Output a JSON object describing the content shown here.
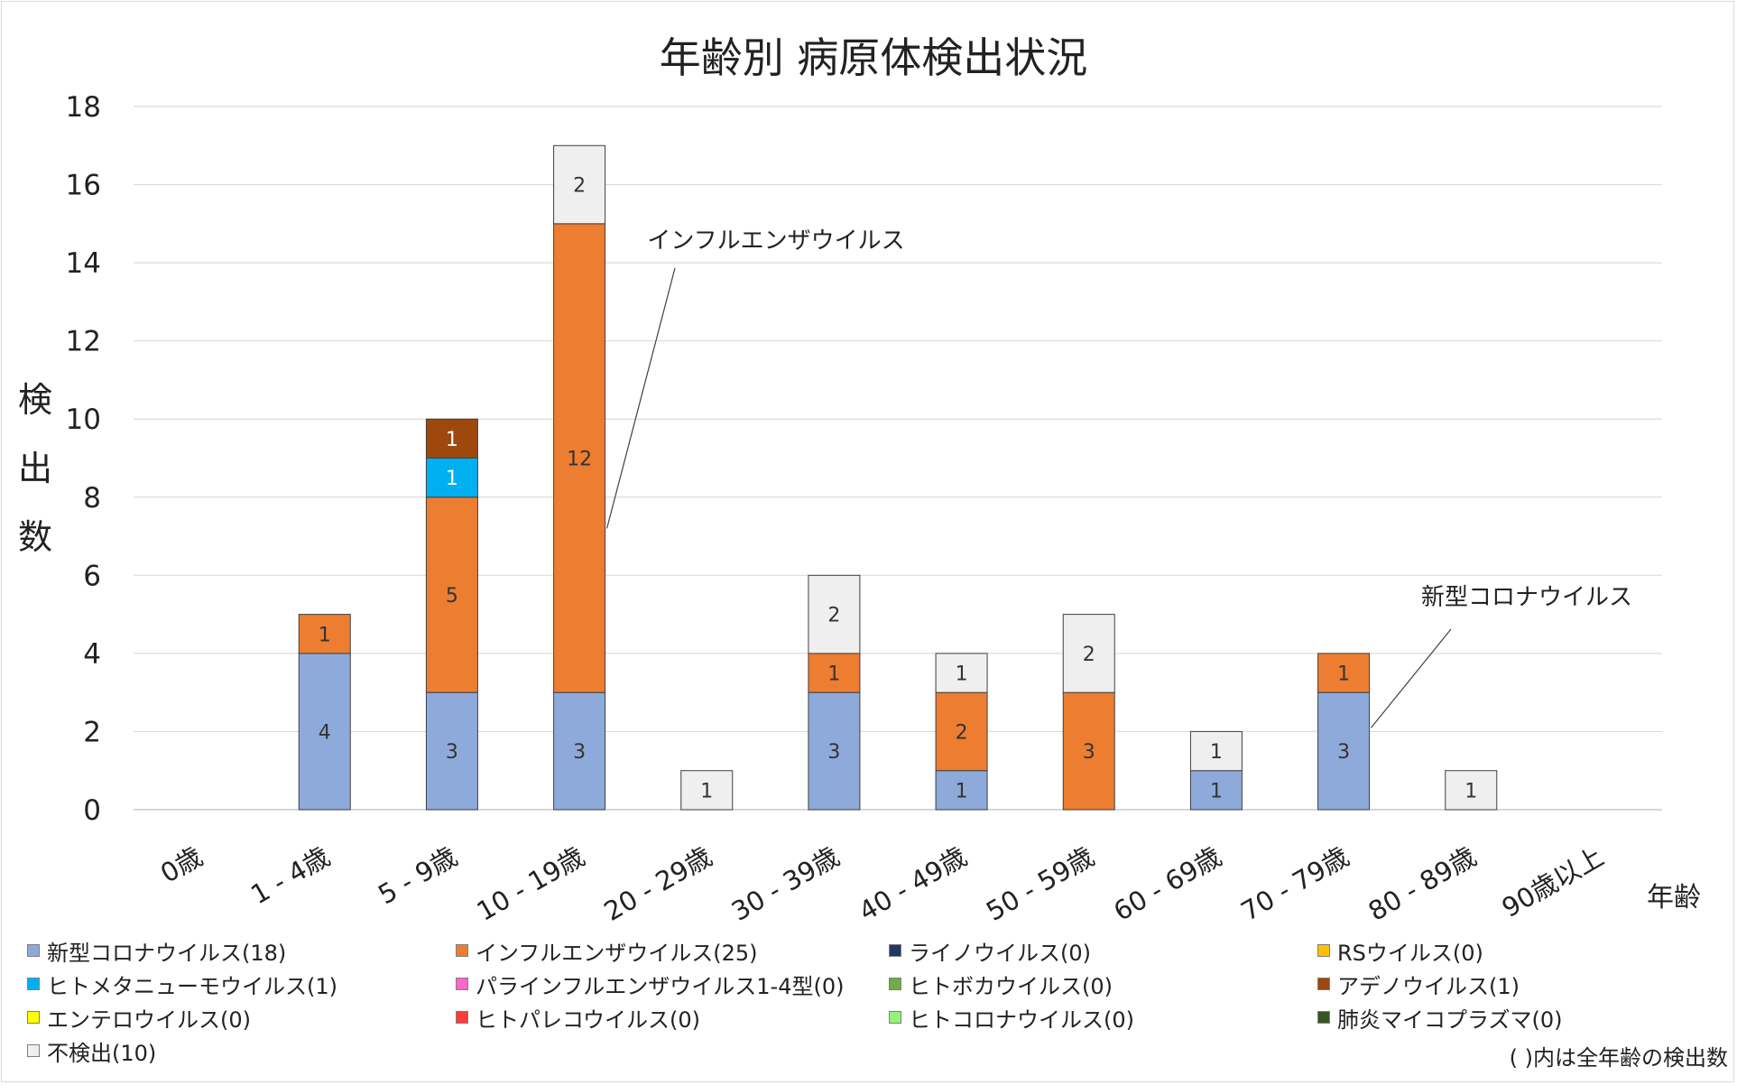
{
  "chart_data": {
    "type": "bar",
    "stacked": true,
    "title": "年齢別 病原体検出状況",
    "ylabel": "検出数",
    "xlabel": "年齢",
    "ylim": [
      0,
      18
    ],
    "yticks": [
      0,
      2,
      4,
      6,
      8,
      10,
      12,
      14,
      16,
      18
    ],
    "grid": true,
    "legend_position": "bottom",
    "categories": [
      "0歳",
      "1 - 4歳",
      "5 - 9歳",
      "10 - 19歳",
      "20 - 29歳",
      "30 - 39歳",
      "40 - 49歳",
      "50 - 59歳",
      "60 - 69歳",
      "70 - 79歳",
      "80 - 89歳",
      "90歳以上"
    ],
    "series": [
      {
        "name": "新型コロナウイルス(18)",
        "color": "#8eaadb",
        "values": [
          0,
          4,
          3,
          3,
          0,
          3,
          1,
          0,
          1,
          3,
          0,
          0
        ]
      },
      {
        "name": "インフルエンザウイルス(25)",
        "color": "#ed7d31",
        "values": [
          0,
          1,
          5,
          12,
          0,
          1,
          2,
          3,
          0,
          1,
          0,
          0
        ]
      },
      {
        "name": "ライノウイルス(0)",
        "color": "#1f3864",
        "values": [
          0,
          0,
          0,
          0,
          0,
          0,
          0,
          0,
          0,
          0,
          0,
          0
        ]
      },
      {
        "name": "RSウイルス(0)",
        "color": "#ffc000",
        "values": [
          0,
          0,
          0,
          0,
          0,
          0,
          0,
          0,
          0,
          0,
          0,
          0
        ]
      },
      {
        "name": "ヒトメタニューモウイルス(1)",
        "color": "#00b0f0",
        "values": [
          0,
          0,
          1,
          0,
          0,
          0,
          0,
          0,
          0,
          0,
          0,
          0
        ]
      },
      {
        "name": "パラインフルエンザウイルス1-4型(0)",
        "color": "#ff66cc",
        "values": [
          0,
          0,
          0,
          0,
          0,
          0,
          0,
          0,
          0,
          0,
          0,
          0
        ]
      },
      {
        "name": "ヒトボカウイルス(0)",
        "color": "#70ad47",
        "values": [
          0,
          0,
          0,
          0,
          0,
          0,
          0,
          0,
          0,
          0,
          0,
          0
        ]
      },
      {
        "name": "アデノウイルス(1)",
        "color": "#9e480e",
        "values": [
          0,
          0,
          1,
          0,
          0,
          0,
          0,
          0,
          0,
          0,
          0,
          0
        ]
      },
      {
        "name": "エンテロウイルス(0)",
        "color": "#ffff00",
        "values": [
          0,
          0,
          0,
          0,
          0,
          0,
          0,
          0,
          0,
          0,
          0,
          0
        ]
      },
      {
        "name": "ヒトパレコウイルス(0)",
        "color": "#ff3b3b",
        "values": [
          0,
          0,
          0,
          0,
          0,
          0,
          0,
          0,
          0,
          0,
          0,
          0
        ]
      },
      {
        "name": "ヒトコロナウイルス(0)",
        "color": "#92f27a",
        "values": [
          0,
          0,
          0,
          0,
          0,
          0,
          0,
          0,
          0,
          0,
          0,
          0
        ]
      },
      {
        "name": "肺炎マイコプラズマ(0)",
        "color": "#375623",
        "values": [
          0,
          0,
          0,
          0,
          0,
          0,
          0,
          0,
          0,
          0,
          0,
          0
        ]
      },
      {
        "name": "不検出(10)",
        "color": "#efefef",
        "values": [
          0,
          0,
          0,
          2,
          1,
          2,
          1,
          2,
          1,
          0,
          1,
          0
        ]
      }
    ],
    "annotations": [
      {
        "text": "インフルエンザウイルス",
        "category": "10 - 19歳",
        "series": "インフルエンザウイルス(25)"
      },
      {
        "text": "新型コロナウイルス",
        "category": "70 - 79歳",
        "series": "新型コロナウイルス(18)"
      }
    ]
  },
  "footnote": "( )内は全年齢の検出数"
}
